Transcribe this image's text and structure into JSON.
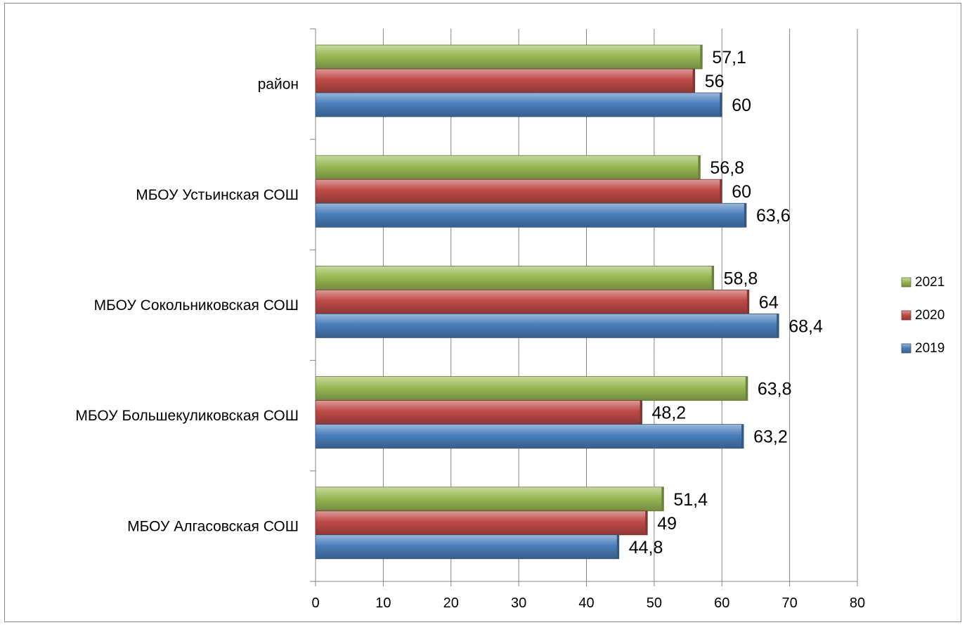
{
  "chart_data": {
    "type": "bar",
    "orientation": "horizontal",
    "categories": [
      "МБОУ Алгасовская СОШ",
      "МБОУ Большекуликовская СОШ",
      "МБОУ Сокольниковская СОШ",
      "МБОУ Устьинская СОШ",
      "район"
    ],
    "series": [
      {
        "name": "2019",
        "color": "#4a7ebb",
        "values": [
          44.8,
          63.2,
          68.4,
          63.6,
          60
        ],
        "labels": [
          "44,8",
          "63,2",
          "68,4",
          "63,6",
          "60"
        ]
      },
      {
        "name": "2020",
        "color": "#be4b48",
        "values": [
          49,
          48.2,
          64,
          60,
          56
        ],
        "labels": [
          "49",
          "48,2",
          "64",
          "60",
          "56"
        ]
      },
      {
        "name": "2021",
        "color": "#98b954",
        "values": [
          51.4,
          63.8,
          58.8,
          56.8,
          57.1
        ],
        "labels": [
          "51,4",
          "63,8",
          "58,8",
          "56,8",
          "57,1"
        ]
      }
    ],
    "xlim": [
      0,
      80
    ],
    "xticks": [
      0,
      10,
      20,
      30,
      40,
      50,
      60,
      70,
      80
    ],
    "title": "",
    "xlabel": "",
    "ylabel": "",
    "grid": "vertical",
    "legend": {
      "position": "right",
      "order": [
        "2021",
        "2020",
        "2019"
      ]
    }
  }
}
